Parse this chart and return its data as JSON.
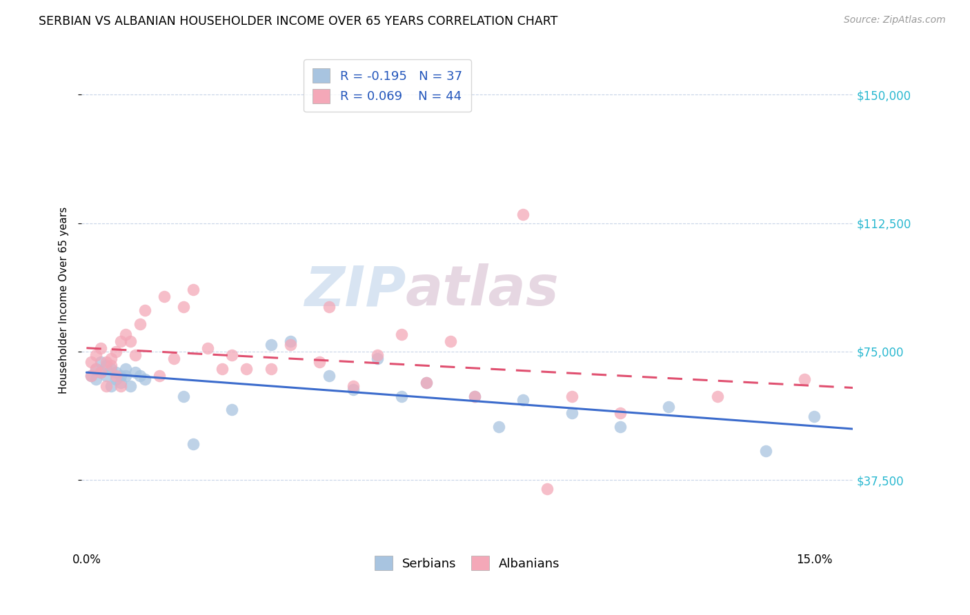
{
  "title": "SERBIAN VS ALBANIAN HOUSEHOLDER INCOME OVER 65 YEARS CORRELATION CHART",
  "source": "Source: ZipAtlas.com",
  "ylabel": "Householder Income Over 65 years",
  "ytick_labels": [
    "$37,500",
    "$75,000",
    "$112,500",
    "$150,000"
  ],
  "ytick_values": [
    37500,
    75000,
    112500,
    150000
  ],
  "ymin": 18000,
  "ymax": 162000,
  "xmin": -0.001,
  "xmax": 0.158,
  "serbian_R": -0.195,
  "serbian_N": 37,
  "albanian_R": 0.069,
  "albanian_N": 44,
  "serbian_color": "#a8c4e0",
  "albanian_color": "#f4a8b8",
  "serbian_line_color": "#3b6bcc",
  "albanian_line_color": "#e05070",
  "background_color": "#ffffff",
  "grid_color": "#c8d4e8",
  "watermark_zip": "ZIP",
  "watermark_atlas": "atlas",
  "serbian_x": [
    0.001,
    0.002,
    0.002,
    0.003,
    0.003,
    0.004,
    0.004,
    0.005,
    0.005,
    0.006,
    0.006,
    0.007,
    0.007,
    0.008,
    0.008,
    0.009,
    0.01,
    0.011,
    0.012,
    0.02,
    0.022,
    0.03,
    0.038,
    0.042,
    0.05,
    0.055,
    0.06,
    0.065,
    0.07,
    0.08,
    0.085,
    0.09,
    0.1,
    0.11,
    0.12,
    0.14,
    0.15
  ],
  "serbian_y": [
    68000,
    70000,
    67000,
    72000,
    69000,
    71000,
    68000,
    70000,
    65000,
    69000,
    67000,
    68000,
    66000,
    70000,
    68000,
    65000,
    69000,
    68000,
    67000,
    62000,
    48000,
    58000,
    77000,
    78000,
    68000,
    64000,
    73000,
    62000,
    66000,
    62000,
    53000,
    61000,
    57000,
    53000,
    59000,
    46000,
    56000
  ],
  "albanian_x": [
    0.001,
    0.001,
    0.002,
    0.002,
    0.003,
    0.003,
    0.004,
    0.004,
    0.005,
    0.005,
    0.006,
    0.006,
    0.007,
    0.007,
    0.008,
    0.009,
    0.01,
    0.011,
    0.012,
    0.015,
    0.016,
    0.018,
    0.02,
    0.022,
    0.025,
    0.028,
    0.03,
    0.033,
    0.038,
    0.042,
    0.048,
    0.05,
    0.055,
    0.06,
    0.065,
    0.07,
    0.075,
    0.08,
    0.09,
    0.095,
    0.1,
    0.11,
    0.13,
    0.148
  ],
  "albanian_y": [
    68000,
    72000,
    74000,
    70000,
    76000,
    69000,
    72000,
    65000,
    73000,
    71000,
    75000,
    68000,
    78000,
    65000,
    80000,
    78000,
    74000,
    83000,
    87000,
    68000,
    91000,
    73000,
    88000,
    93000,
    76000,
    70000,
    74000,
    70000,
    70000,
    77000,
    72000,
    88000,
    65000,
    74000,
    80000,
    66000,
    78000,
    62000,
    115000,
    35000,
    62000,
    57000,
    62000,
    67000
  ]
}
